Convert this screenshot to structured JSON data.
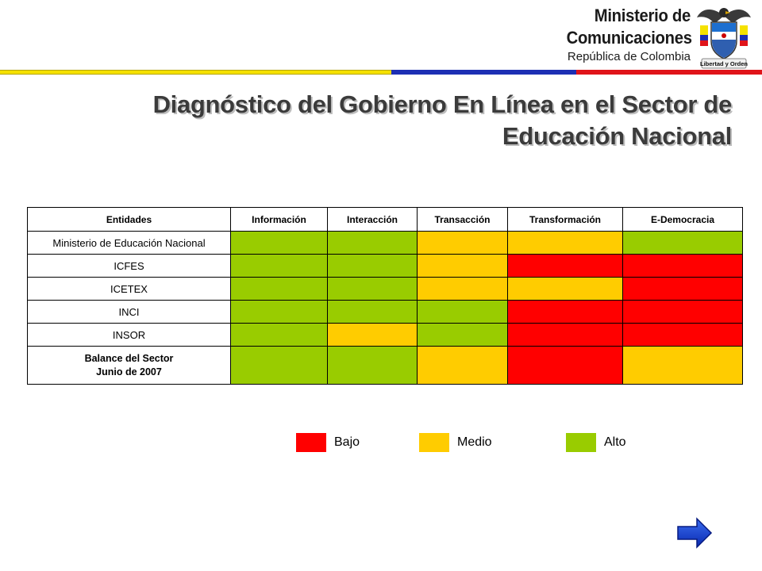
{
  "header": {
    "ministry_line1": "Ministerio de",
    "ministry_line2": "Comunicaciones",
    "country": "República de Colombia",
    "seal_motto": "Libertad y Orden"
  },
  "title": {
    "line1": "Diagnóstico del Gobierno En Línea en el Sector de",
    "line2": "Educación Nacional"
  },
  "table": {
    "headers": [
      "Entidades",
      "Información",
      "Interacción",
      "Transacción",
      "Transformación",
      "E-Democracia"
    ],
    "rows": [
      {
        "entity": "Ministerio de Educación Nacional",
        "levels": [
          "alto",
          "alto",
          "medio",
          "medio",
          "alto"
        ]
      },
      {
        "entity": "ICFES",
        "levels": [
          "alto",
          "alto",
          "medio",
          "bajo",
          "bajo"
        ]
      },
      {
        "entity": "ICETEX",
        "levels": [
          "alto",
          "alto",
          "medio",
          "medio",
          "bajo"
        ]
      },
      {
        "entity": "INCI",
        "levels": [
          "alto",
          "alto",
          "alto",
          "bajo",
          "bajo"
        ]
      },
      {
        "entity": "INSOR",
        "levels": [
          "alto",
          "medio",
          "alto",
          "bajo",
          "bajo"
        ]
      }
    ],
    "balance": {
      "line1": "Balance del Sector",
      "line2": "Junio de 2007",
      "levels": [
        "alto",
        "alto",
        "medio",
        "bajo",
        "medio"
      ]
    }
  },
  "legend": {
    "bajo": "Bajo",
    "medio": "Medio",
    "alto": "Alto"
  },
  "colors": {
    "bajo": "#ff0000",
    "medio": "#ffcc00",
    "alto": "#99cc00",
    "flag_yellow": "#f5e100",
    "flag_blue": "#1d2fb4",
    "flag_red": "#e0141a"
  },
  "navigation": {
    "next_icon": "arrow-right-icon"
  }
}
